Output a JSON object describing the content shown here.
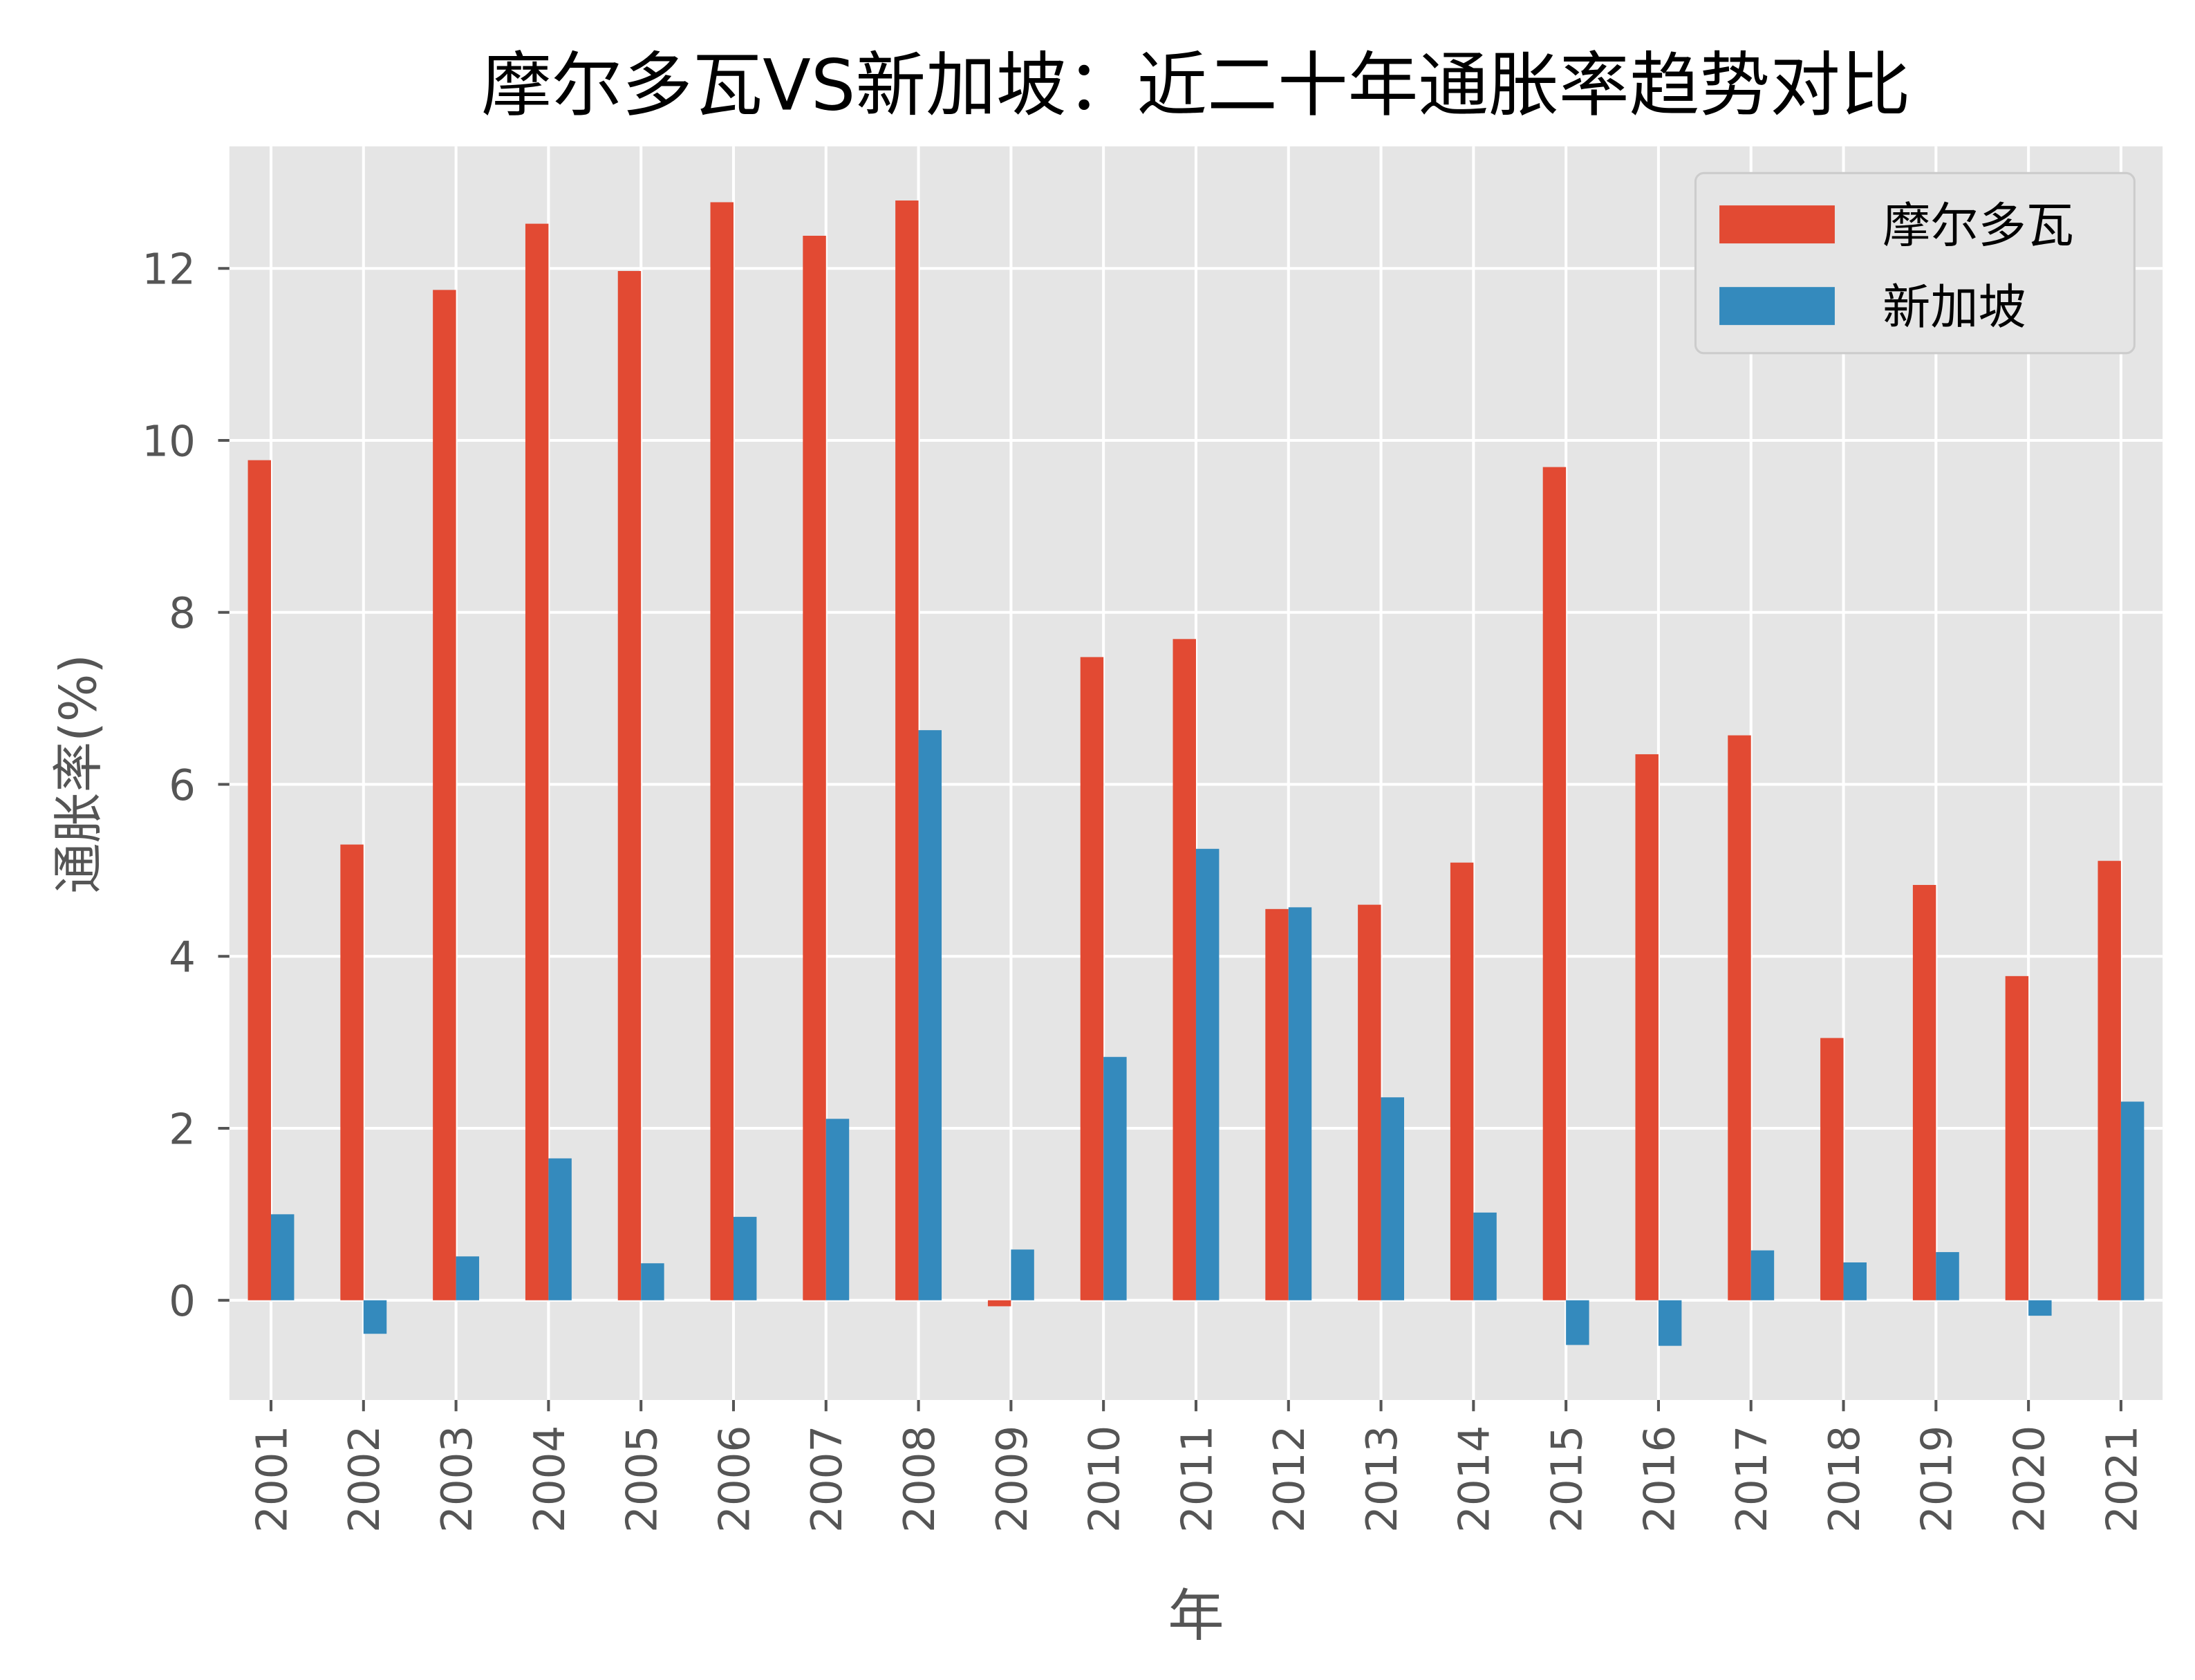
{
  "chart_data": {
    "type": "bar",
    "title": "摩尔多瓦VS新加坡：近二十年通胀率趋势对比",
    "xlabel": "年",
    "ylabel": "通胀率(%)",
    "categories": [
      "2001",
      "2002",
      "2003",
      "2004",
      "2005",
      "2006",
      "2007",
      "2008",
      "2009",
      "2010",
      "2011",
      "2012",
      "2013",
      "2014",
      "2015",
      "2016",
      "2017",
      "2018",
      "2019",
      "2020",
      "2021"
    ],
    "series": [
      {
        "name": "摩尔多瓦",
        "color": "#E24A33",
        "values": [
          9.77,
          5.3,
          11.75,
          12.52,
          11.97,
          12.77,
          12.38,
          12.79,
          -0.07,
          7.48,
          7.69,
          4.55,
          4.6,
          5.09,
          9.69,
          6.35,
          6.57,
          3.05,
          4.83,
          3.77,
          5.11
        ]
      },
      {
        "name": "新加坡",
        "color": "#348ABD",
        "values": [
          1.0,
          -0.39,
          0.51,
          1.65,
          0.43,
          0.97,
          2.11,
          6.63,
          0.59,
          2.83,
          5.25,
          4.57,
          2.36,
          1.02,
          -0.52,
          -0.53,
          0.58,
          0.44,
          0.56,
          -0.18,
          2.31
        ]
      }
    ],
    "yticks": [
      0,
      2,
      4,
      6,
      8,
      10,
      12
    ],
    "ylim": [
      -1.16,
      13.42
    ],
    "grid": true,
    "legend": "top-right",
    "background": "#E5E5E5"
  }
}
